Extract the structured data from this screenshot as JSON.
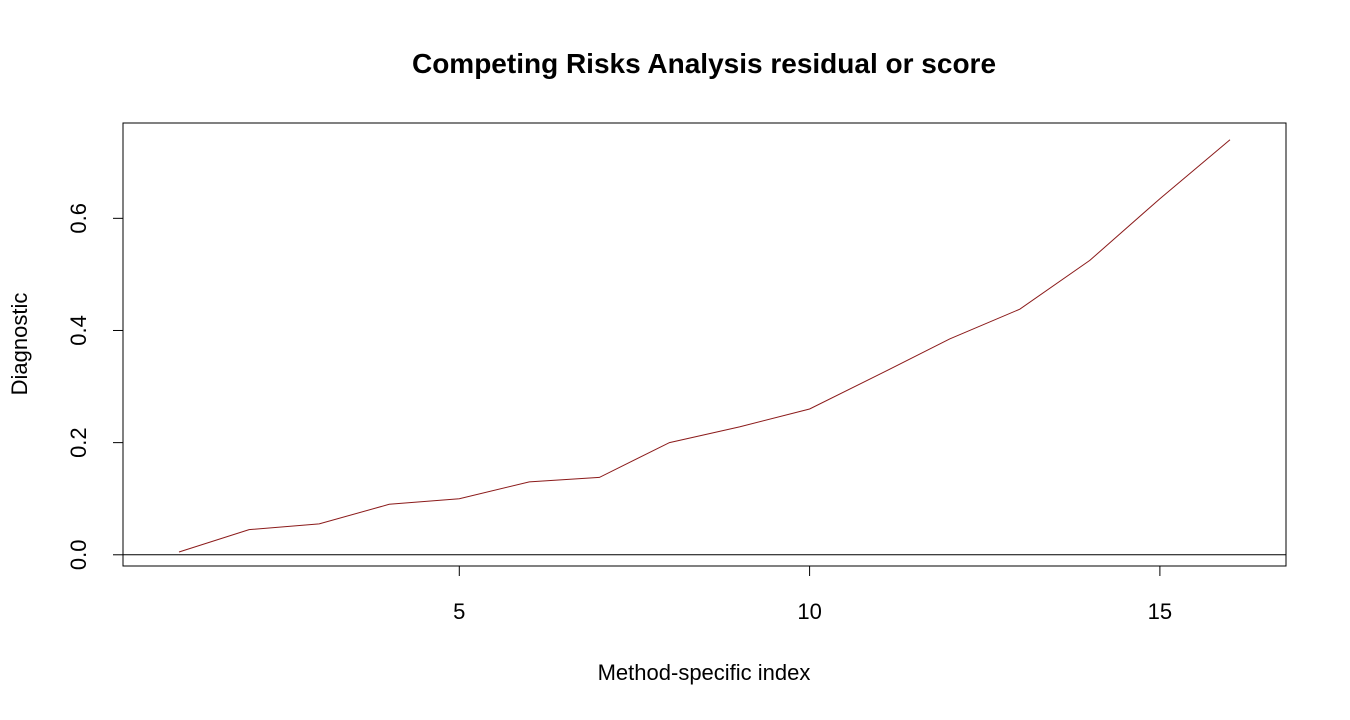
{
  "chart_data": {
    "type": "line",
    "title": "Competing Risks Analysis residual or score",
    "xlabel": "Method-specific index",
    "ylabel": "Diagnostic",
    "x": [
      1,
      2,
      3,
      4,
      5,
      6,
      7,
      8,
      9,
      10,
      11,
      12,
      13,
      14,
      15,
      16
    ],
    "series": [
      {
        "values": [
          0.005,
          0.045,
          0.055,
          0.09,
          0.1,
          0.13,
          0.138,
          0.2,
          0.228,
          0.26,
          0.322,
          0.385,
          0.438,
          0.525,
          0.635,
          0.74
        ],
        "color": "#8b1a1a"
      }
    ],
    "xlim": [
      0.2,
      16.8
    ],
    "ylim": [
      -0.02,
      0.77
    ],
    "xticks": [
      5,
      10,
      15
    ],
    "xtick_labels": [
      "5",
      "10",
      "15"
    ],
    "yticks": [
      0.0,
      0.2,
      0.4,
      0.6
    ],
    "ytick_labels": [
      "0.0",
      "0.2",
      "0.4",
      "0.6"
    ],
    "hline": 0,
    "hline_color": "#000000",
    "grid": false,
    "legend": "none"
  }
}
